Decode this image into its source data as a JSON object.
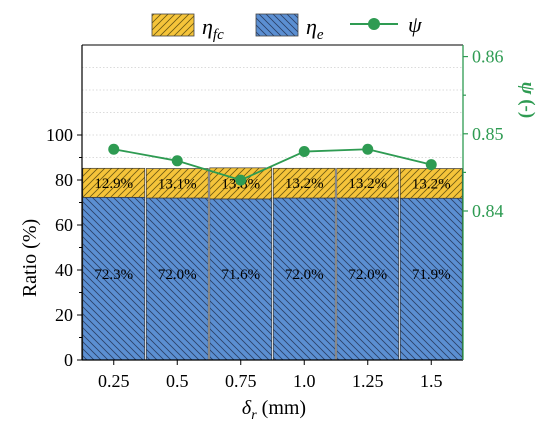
{
  "chart_data": {
    "type": "bar",
    "categories": [
      "0.25",
      "0.5",
      "0.75",
      "1.0",
      "1.25",
      "1.5"
    ],
    "xlabel_symbol": "δ",
    "xlabel_sub": "r",
    "xlabel_unit": " (mm)",
    "ylabel": "Ratio (%)",
    "ylim": [
      0,
      140
    ],
    "yticks": [
      0,
      20,
      40,
      60,
      80,
      100
    ],
    "stacked": true,
    "series": [
      {
        "name_symbol": "η",
        "name_sub": "e",
        "values": [
          72.3,
          72.0,
          71.6,
          72.0,
          72.0,
          71.9
        ],
        "labels": [
          "72.3%",
          "72.0%",
          "71.6%",
          "72.0%",
          "72.0%",
          "71.9%"
        ],
        "color": "#5b8fd2",
        "hatch": "backslash"
      },
      {
        "name_symbol": "η",
        "name_sub": "fc",
        "values": [
          12.9,
          13.1,
          13.8,
          13.2,
          13.2,
          13.2
        ],
        "labels": [
          "12.9%",
          "13.1%",
          "13.8%",
          "13.2%",
          "13.2%",
          "13.2%"
        ],
        "color": "#f5c43a",
        "hatch": "slash"
      }
    ],
    "secondary": {
      "name_symbol": "ψ",
      "ylabel_symbol": "ψ",
      "ylabel_unit": " (-)",
      "values": [
        0.848,
        0.8465,
        0.844,
        0.8477,
        0.848,
        0.846
      ],
      "ylim": [
        0.8207,
        0.8615
      ],
      "yticks": [
        "0.84",
        "0.85",
        "0.86"
      ],
      "color": "#2e9b52"
    },
    "legend_position": "top",
    "grid": "dotted-horizontal"
  }
}
